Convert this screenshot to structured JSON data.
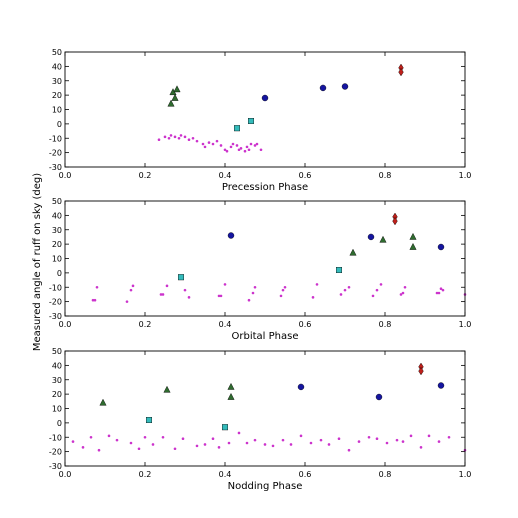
{
  "ylabel": "Measured angle of ruff on sky (deg)",
  "colors": {
    "small": "#cc33cc",
    "triangle": "#2f6b2f",
    "square": "#33bbbb",
    "circle": "#1515a0",
    "diamond": "#c0201b"
  },
  "chart_data": [
    {
      "type": "scatter",
      "xlabel": "Precession Phase",
      "xlim": [
        0.0,
        1.0
      ],
      "ylim": [
        -30,
        50
      ],
      "xticks": [
        "0.0",
        "0.2",
        "0.4",
        "0.6",
        "0.8",
        "1.0"
      ],
      "yticks": [
        "-30",
        "-20",
        "-10",
        "0",
        "10",
        "20",
        "30",
        "40",
        "50"
      ],
      "series": [
        {
          "marker": "small",
          "points": [
            [
              0.235,
              -11
            ],
            [
              0.25,
              -9
            ],
            [
              0.26,
              -10
            ],
            [
              0.265,
              -8
            ],
            [
              0.275,
              -9
            ],
            [
              0.285,
              -10
            ],
            [
              0.29,
              -8
            ],
            [
              0.3,
              -9
            ],
            [
              0.31,
              -11
            ],
            [
              0.32,
              -10
            ],
            [
              0.33,
              -12
            ],
            [
              0.345,
              -14
            ],
            [
              0.35,
              -16
            ],
            [
              0.36,
              -13
            ],
            [
              0.37,
              -14
            ],
            [
              0.38,
              -12
            ],
            [
              0.39,
              -15
            ],
            [
              0.4,
              -18
            ],
            [
              0.405,
              -19
            ],
            [
              0.415,
              -16
            ],
            [
              0.42,
              -14
            ],
            [
              0.43,
              -15
            ],
            [
              0.435,
              -18
            ],
            [
              0.44,
              -17
            ],
            [
              0.45,
              -19
            ],
            [
              0.455,
              -16
            ],
            [
              0.46,
              -18
            ],
            [
              0.465,
              -14
            ],
            [
              0.475,
              -15
            ],
            [
              0.48,
              -14
            ],
            [
              0.49,
              -18
            ]
          ]
        },
        {
          "marker": "triangle",
          "points": [
            [
              0.265,
              14
            ],
            [
              0.27,
              22
            ],
            [
              0.275,
              18
            ],
            [
              0.28,
              24
            ]
          ]
        },
        {
          "marker": "square",
          "points": [
            [
              0.43,
              -3
            ],
            [
              0.465,
              2
            ]
          ]
        },
        {
          "marker": "circle",
          "points": [
            [
              0.5,
              18
            ],
            [
              0.645,
              25
            ],
            [
              0.7,
              26
            ]
          ]
        },
        {
          "marker": "diamond",
          "points": [
            [
              0.84,
              39
            ],
            [
              0.84,
              36
            ]
          ]
        }
      ]
    },
    {
      "type": "scatter",
      "xlabel": "Orbital Phase",
      "xlim": [
        0.0,
        1.0
      ],
      "ylim": [
        -30,
        50
      ],
      "xticks": [
        "0.0",
        "0.2",
        "0.4",
        "0.6",
        "0.8",
        "1.0"
      ],
      "yticks": [
        "-30",
        "-20",
        "-10",
        "0",
        "10",
        "20",
        "30",
        "40",
        "50"
      ],
      "series": [
        {
          "marker": "small",
          "points": [
            [
              0.07,
              -19
            ],
            [
              0.075,
              -19
            ],
            [
              0.08,
              -10
            ],
            [
              0.155,
              -20
            ],
            [
              0.165,
              -12
            ],
            [
              0.17,
              -9
            ],
            [
              0.24,
              -15
            ],
            [
              0.245,
              -15
            ],
            [
              0.255,
              -9
            ],
            [
              0.3,
              -12
            ],
            [
              0.31,
              -17
            ],
            [
              0.385,
              -16
            ],
            [
              0.39,
              -16
            ],
            [
              0.4,
              -8
            ],
            [
              0.46,
              -19
            ],
            [
              0.47,
              -14
            ],
            [
              0.475,
              -10
            ],
            [
              0.54,
              -16
            ],
            [
              0.545,
              -12
            ],
            [
              0.55,
              -10
            ],
            [
              0.62,
              -17
            ],
            [
              0.63,
              -8
            ],
            [
              0.69,
              -15
            ],
            [
              0.7,
              -12
            ],
            [
              0.71,
              -10
            ],
            [
              0.77,
              -16
            ],
            [
              0.78,
              -12
            ],
            [
              0.79,
              -8
            ],
            [
              0.84,
              -15
            ],
            [
              0.845,
              -14
            ],
            [
              0.85,
              -10
            ],
            [
              0.93,
              -14
            ],
            [
              0.935,
              -14
            ],
            [
              0.94,
              -11
            ],
            [
              0.945,
              -12
            ],
            [
              1.0,
              -15
            ]
          ]
        },
        {
          "marker": "triangle",
          "points": [
            [
              0.72,
              14
            ],
            [
              0.795,
              23
            ],
            [
              0.87,
              25
            ],
            [
              0.87,
              18
            ]
          ]
        },
        {
          "marker": "square",
          "points": [
            [
              0.29,
              -3
            ],
            [
              0.685,
              2
            ]
          ]
        },
        {
          "marker": "circle",
          "points": [
            [
              0.415,
              26
            ],
            [
              0.765,
              25
            ],
            [
              0.94,
              18
            ]
          ]
        },
        {
          "marker": "diamond",
          "points": [
            [
              0.825,
              39
            ],
            [
              0.825,
              36
            ]
          ]
        }
      ]
    },
    {
      "type": "scatter",
      "xlabel": "Nodding Phase",
      "xlim": [
        0.0,
        1.0
      ],
      "ylim": [
        -30,
        50
      ],
      "xticks": [
        "0.0",
        "0.2",
        "0.4",
        "0.6",
        "0.8",
        "1.0"
      ],
      "yticks": [
        "-30",
        "-20",
        "-10",
        "0",
        "10",
        "20",
        "30",
        "40",
        "50"
      ],
      "series": [
        {
          "marker": "small",
          "points": [
            [
              0.02,
              -13
            ],
            [
              0.045,
              -17
            ],
            [
              0.065,
              -10
            ],
            [
              0.085,
              -19
            ],
            [
              0.11,
              -9
            ],
            [
              0.13,
              -12
            ],
            [
              0.165,
              -14
            ],
            [
              0.185,
              -18
            ],
            [
              0.2,
              -10
            ],
            [
              0.22,
              -15
            ],
            [
              0.245,
              -10
            ],
            [
              0.275,
              -18
            ],
            [
              0.295,
              -11
            ],
            [
              0.33,
              -16
            ],
            [
              0.35,
              -15
            ],
            [
              0.37,
              -11
            ],
            [
              0.385,
              -17
            ],
            [
              0.41,
              -14
            ],
            [
              0.435,
              -7
            ],
            [
              0.455,
              -14
            ],
            [
              0.475,
              -12
            ],
            [
              0.5,
              -15
            ],
            [
              0.52,
              -16
            ],
            [
              0.545,
              -12
            ],
            [
              0.565,
              -15
            ],
            [
              0.59,
              -9
            ],
            [
              0.615,
              -14
            ],
            [
              0.64,
              -12
            ],
            [
              0.66,
              -15
            ],
            [
              0.685,
              -11
            ],
            [
              0.71,
              -19
            ],
            [
              0.735,
              -13
            ],
            [
              0.76,
              -10
            ],
            [
              0.78,
              -11
            ],
            [
              0.805,
              -14
            ],
            [
              0.83,
              -12
            ],
            [
              0.845,
              -13
            ],
            [
              0.865,
              -9
            ],
            [
              0.89,
              -17
            ],
            [
              0.91,
              -9
            ],
            [
              0.935,
              -13
            ],
            [
              0.96,
              -10
            ],
            [
              1.0,
              -19
            ]
          ]
        },
        {
          "marker": "triangle",
          "points": [
            [
              0.095,
              14
            ],
            [
              0.255,
              23
            ],
            [
              0.415,
              25
            ],
            [
              0.415,
              18
            ]
          ]
        },
        {
          "marker": "square",
          "points": [
            [
              0.21,
              2
            ],
            [
              0.4,
              -3
            ]
          ]
        },
        {
          "marker": "circle",
          "points": [
            [
              0.59,
              25
            ],
            [
              0.785,
              18
            ],
            [
              0.94,
              26
            ]
          ]
        },
        {
          "marker": "diamond",
          "points": [
            [
              0.89,
              39
            ],
            [
              0.89,
              36
            ]
          ]
        }
      ]
    }
  ]
}
